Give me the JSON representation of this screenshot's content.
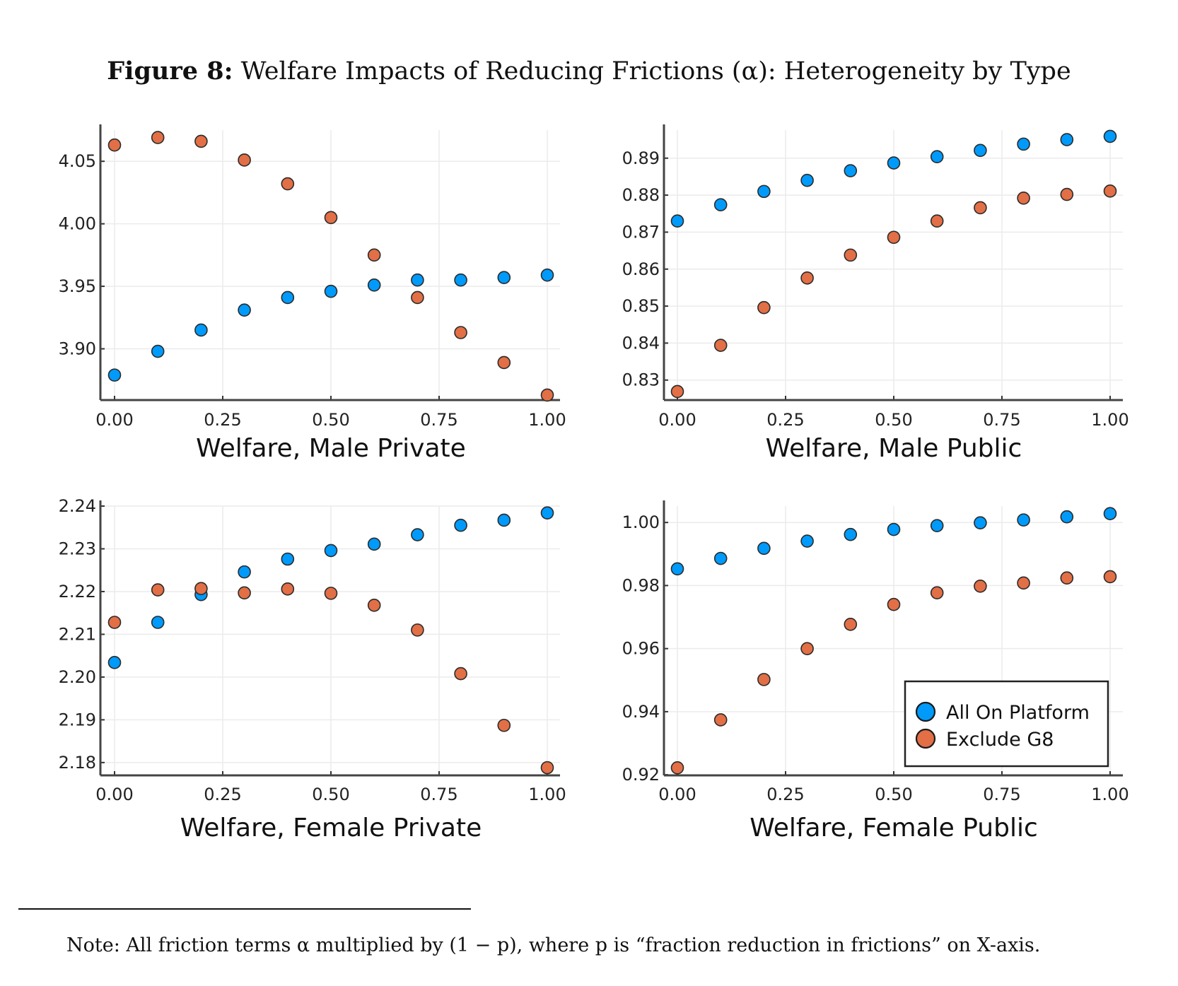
{
  "figure": {
    "label": "Figure 8:",
    "title": "Welfare Impacts of Reducing Frictions (α): Heterogeneity by Type"
  },
  "note": "Note: All friction terms α multiplied by (1 − p), where p is “fraction reduction in frictions” on X-axis.",
  "colors": {
    "all_on_platform": "#009AFA",
    "exclude_g8": "#E26F46"
  },
  "chart_data": [
    {
      "type": "scatter",
      "title": "",
      "xlabel": "Welfare, Male Private",
      "ylabel": "",
      "x": [
        0.0,
        0.1,
        0.2,
        0.3,
        0.4,
        0.5,
        0.6,
        0.7,
        0.8,
        0.9,
        1.0
      ],
      "xticks": [
        "0.00",
        "0.25",
        "0.50",
        "0.75",
        "1.00"
      ],
      "yticks": [
        "3.90",
        "3.95",
        "4.00",
        "4.05"
      ],
      "ytick_values": [
        3.9,
        3.95,
        4.0,
        4.05
      ],
      "xlim": [
        -0.03,
        1.03
      ],
      "ylim": [
        3.859,
        4.075
      ],
      "grid": true,
      "series": [
        {
          "name": "All On Platform",
          "values": [
            3.879,
            3.898,
            3.915,
            3.931,
            3.941,
            3.946,
            3.951,
            3.955,
            3.955,
            3.957,
            3.959
          ]
        },
        {
          "name": "Exclude G8",
          "values": [
            4.063,
            4.069,
            4.066,
            4.051,
            4.032,
            4.005,
            3.975,
            3.941,
            3.913,
            3.889,
            3.863
          ]
        }
      ]
    },
    {
      "type": "scatter",
      "title": "",
      "xlabel": "Welfare, Male Public",
      "ylabel": "",
      "x": [
        0.0,
        0.1,
        0.2,
        0.3,
        0.4,
        0.5,
        0.6,
        0.7,
        0.8,
        0.9,
        1.0
      ],
      "xticks": [
        "0.00",
        "0.25",
        "0.50",
        "0.75",
        "1.00"
      ],
      "yticks": [
        "0.83",
        "0.84",
        "0.85",
        "0.86",
        "0.87",
        "0.88",
        "0.89"
      ],
      "ytick_values": [
        0.83,
        0.84,
        0.85,
        0.86,
        0.87,
        0.88,
        0.89
      ],
      "xlim": [
        -0.03,
        1.03
      ],
      "ylim": [
        0.8246,
        0.8976
      ],
      "grid": true,
      "series": [
        {
          "name": "All On Platform",
          "values": [
            0.873,
            0.8774,
            0.881,
            0.884,
            0.8866,
            0.8887,
            0.8904,
            0.8921,
            0.8938,
            0.895,
            0.8959
          ]
        },
        {
          "name": "Exclude G8",
          "values": [
            0.8269,
            0.8394,
            0.8496,
            0.8576,
            0.8638,
            0.8686,
            0.873,
            0.8766,
            0.8792,
            0.8802,
            0.8811
          ]
        }
      ]
    },
    {
      "type": "scatter",
      "title": "",
      "xlabel": "Welfare, Female Private",
      "ylabel": "",
      "x": [
        0.0,
        0.1,
        0.2,
        0.3,
        0.4,
        0.5,
        0.6,
        0.7,
        0.8,
        0.9,
        1.0
      ],
      "xticks": [
        "0.00",
        "0.25",
        "0.50",
        "0.75",
        "1.00"
      ],
      "yticks": [
        "2.18",
        "2.19",
        "2.20",
        "2.21",
        "2.22",
        "2.23",
        "2.24"
      ],
      "ytick_values": [
        2.18,
        2.19,
        2.2,
        2.21,
        2.22,
        2.23,
        2.24
      ],
      "xlim": [
        -0.03,
        1.03
      ],
      "ylim": [
        2.177,
        2.24
      ],
      "grid": true,
      "series": [
        {
          "name": "All On Platform",
          "values": [
            2.2034,
            2.2128,
            2.2193,
            2.2246,
            2.2276,
            2.2296,
            2.2311,
            2.2333,
            2.2355,
            2.2367,
            2.2384
          ]
        },
        {
          "name": "Exclude G8",
          "values": [
            2.2128,
            2.2204,
            2.2207,
            2.2197,
            2.2206,
            2.2196,
            2.2168,
            2.211,
            2.2008,
            2.1887,
            2.1788
          ]
        }
      ]
    },
    {
      "type": "scatter",
      "title": "",
      "xlabel": "Welfare, Female Public",
      "ylabel": "",
      "x": [
        0.0,
        0.1,
        0.2,
        0.3,
        0.4,
        0.5,
        0.6,
        0.7,
        0.8,
        0.9,
        1.0
      ],
      "xticks": [
        "0.00",
        "0.25",
        "0.50",
        "0.75",
        "1.00"
      ],
      "yticks": [
        "0.92",
        "0.94",
        "0.96",
        "0.98",
        "1.00"
      ],
      "ytick_values": [
        0.92,
        0.94,
        0.96,
        0.98,
        1.0
      ],
      "xlim": [
        -0.03,
        1.03
      ],
      "ylim": [
        0.9198,
        1.0052
      ],
      "grid": true,
      "legend": {
        "position": "bottom-right",
        "entries": [
          "All On Platform",
          "Exclude G8"
        ]
      },
      "series": [
        {
          "name": "All On Platform",
          "values": [
            0.9853,
            0.9886,
            0.9918,
            0.9941,
            0.9962,
            0.9978,
            0.999,
            0.9999,
            1.0008,
            1.0018,
            1.0028
          ]
        },
        {
          "name": "Exclude G8",
          "values": [
            0.9222,
            0.9374,
            0.9502,
            0.96,
            0.9677,
            0.974,
            0.9777,
            0.9798,
            0.9808,
            0.9824,
            0.9828
          ]
        }
      ]
    }
  ]
}
